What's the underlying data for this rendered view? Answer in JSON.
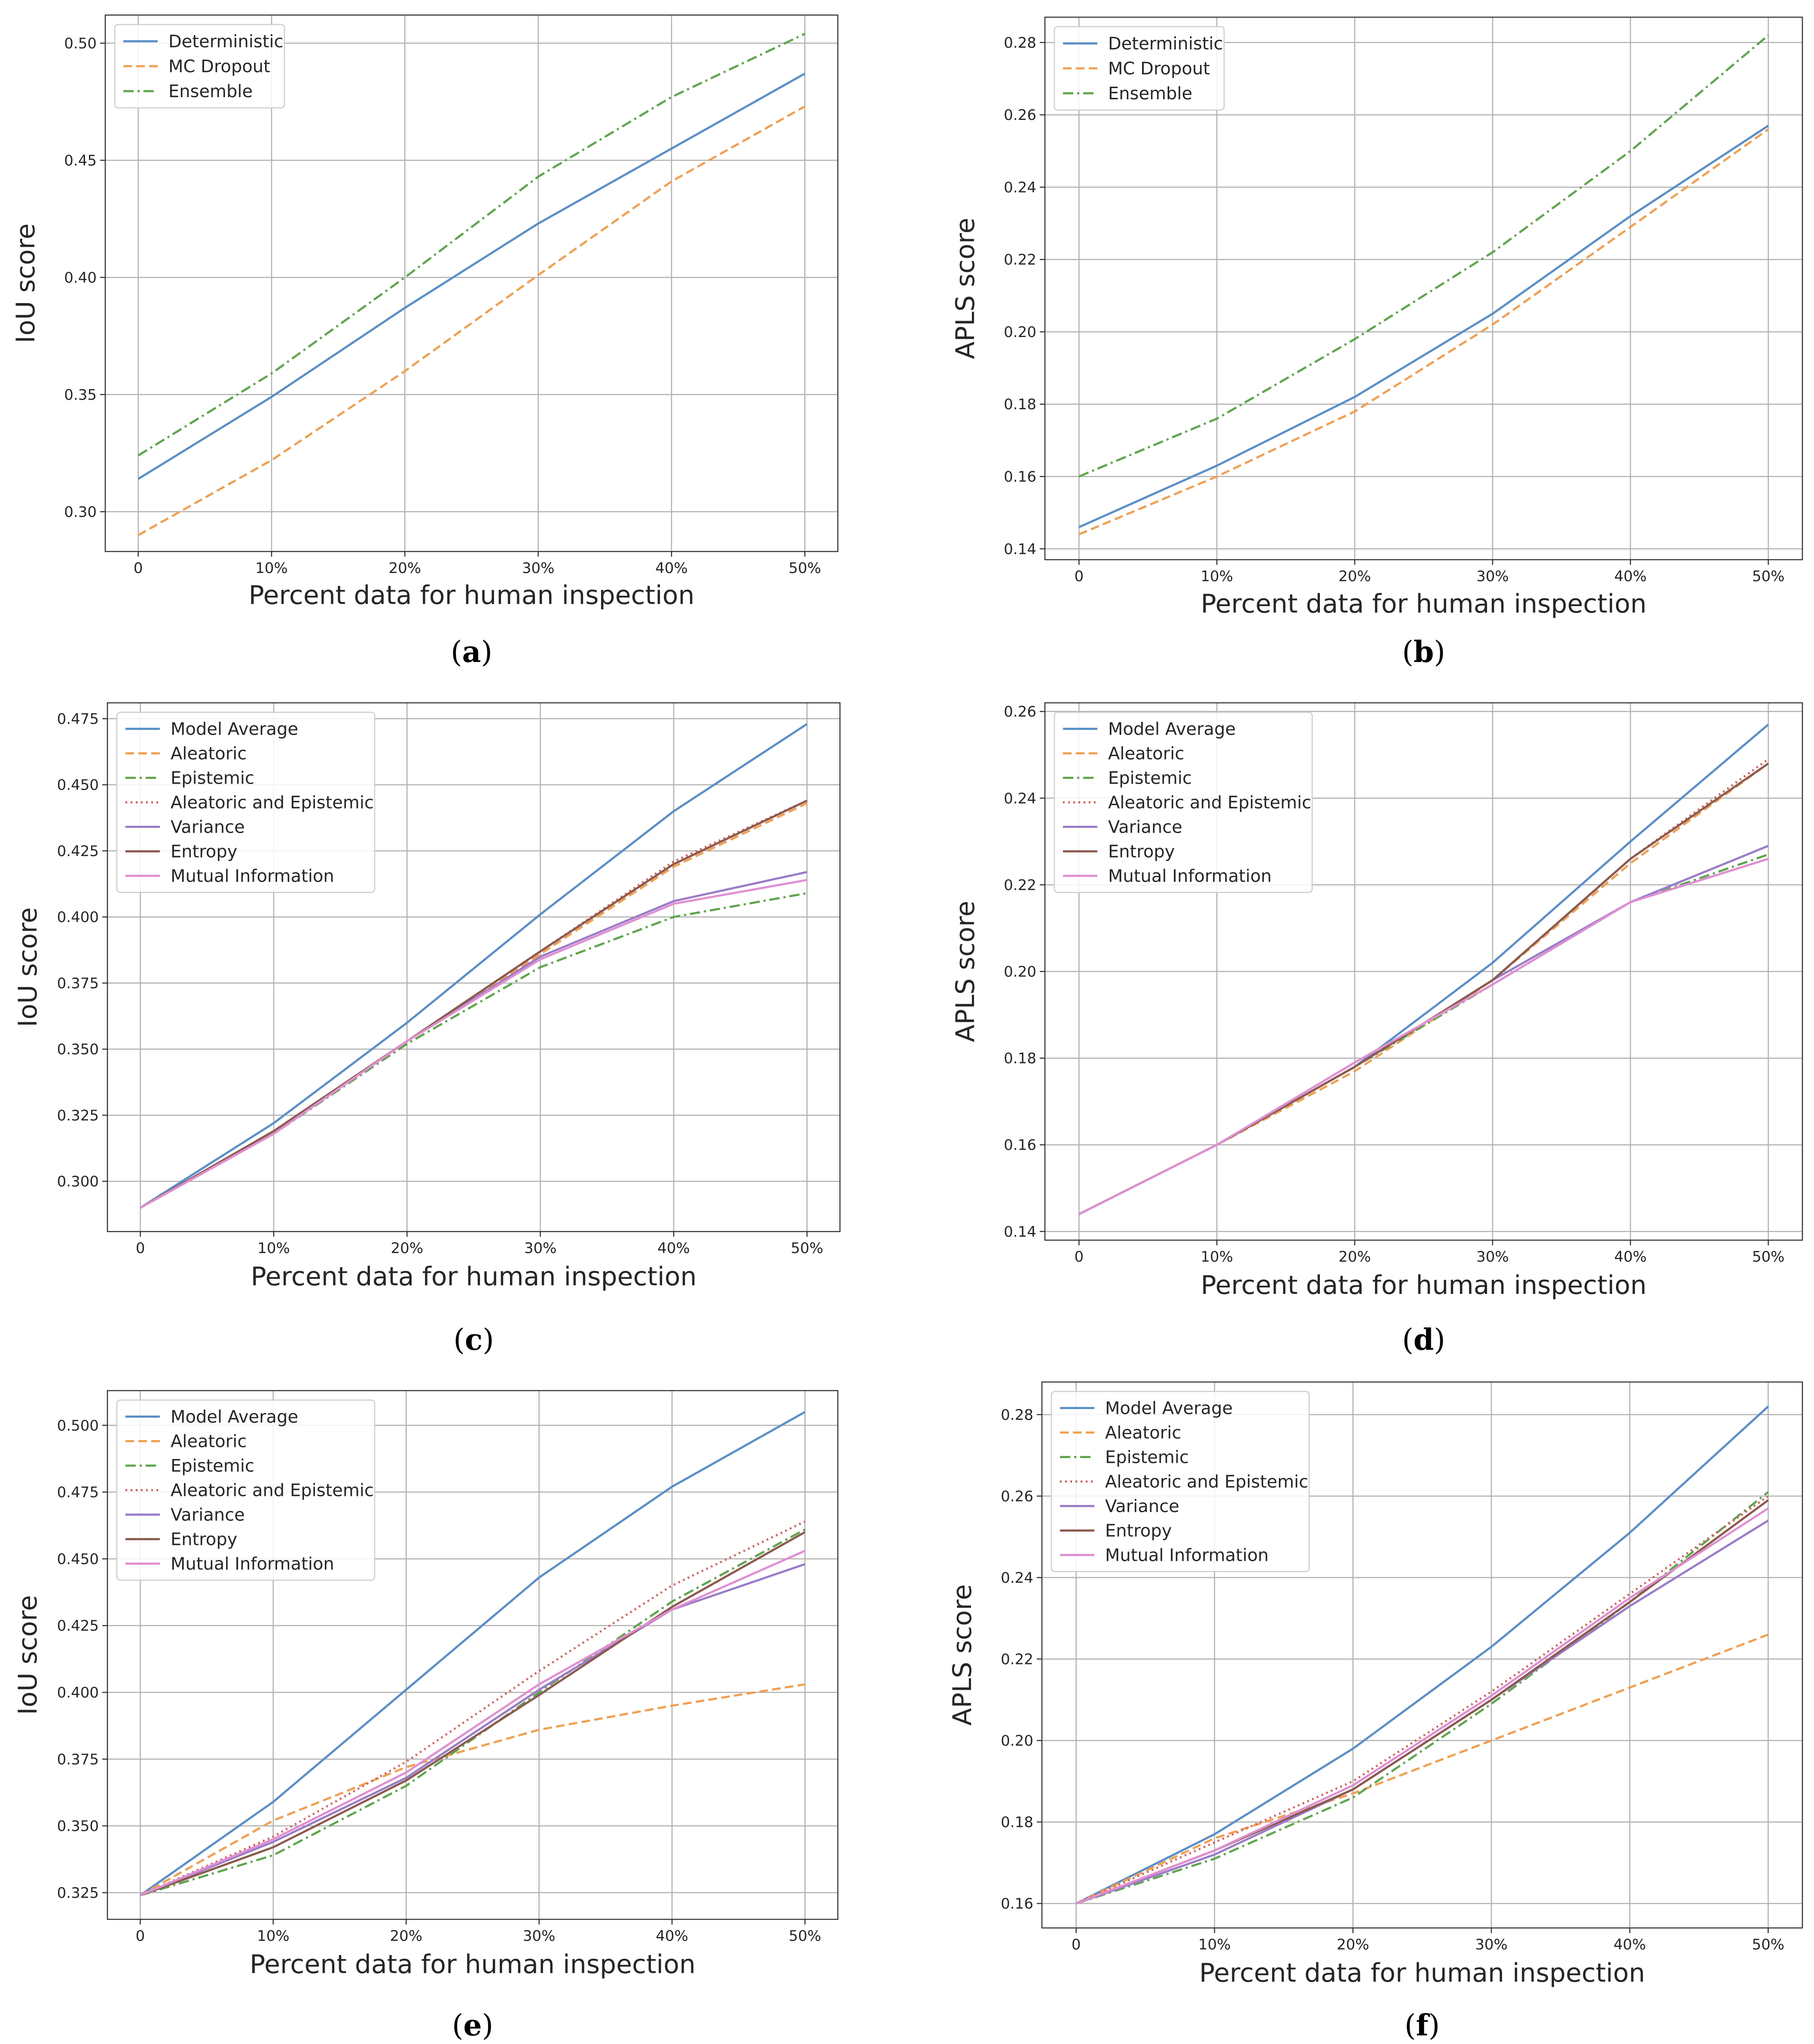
{
  "chart_data": [
    {
      "panel": "a",
      "caption": "a",
      "type": "line",
      "xlabel": "Percent data for human inspection",
      "ylabel": "IoU score",
      "x": [
        "0",
        "10%",
        "20%",
        "30%",
        "40%",
        "50%"
      ],
      "ylim": [
        0.283,
        0.512
      ],
      "yticks": [
        "0.30",
        "0.35",
        "0.40",
        "0.45",
        "0.50"
      ],
      "ytick_values": [
        0.3,
        0.35,
        0.4,
        0.45,
        0.5
      ],
      "series": [
        {
          "name": "Deterministic",
          "color": "#5b8fc7",
          "style": "solid",
          "values": [
            0.314,
            0.349,
            0.387,
            0.423,
            0.455,
            0.487
          ]
        },
        {
          "name": "MC Dropout",
          "color": "#f0a050",
          "style": "dashed",
          "values": [
            0.29,
            0.322,
            0.36,
            0.401,
            0.441,
            0.473
          ]
        },
        {
          "name": "Ensemble",
          "color": "#5fa64e",
          "style": "dashdot",
          "values": [
            0.324,
            0.359,
            0.4,
            0.443,
            0.477,
            0.504
          ]
        }
      ]
    },
    {
      "panel": "b",
      "caption": "b",
      "type": "line",
      "xlabel": "Percent data for human inspection",
      "ylabel": "APLS score",
      "x": [
        "0",
        "10%",
        "20%",
        "30%",
        "40%",
        "50%"
      ],
      "ylim": [
        0.137,
        0.287
      ],
      "yticks": [
        "0.14",
        "0.16",
        "0.18",
        "0.20",
        "0.22",
        "0.24",
        "0.26",
        "0.28"
      ],
      "ytick_values": [
        0.14,
        0.16,
        0.18,
        0.2,
        0.22,
        0.24,
        0.26,
        0.28
      ],
      "series": [
        {
          "name": "Deterministic",
          "color": "#5b8fc7",
          "style": "solid",
          "values": [
            0.146,
            0.163,
            0.182,
            0.205,
            0.232,
            0.257
          ]
        },
        {
          "name": "MC Dropout",
          "color": "#f0a050",
          "style": "dashed",
          "values": [
            0.144,
            0.16,
            0.178,
            0.202,
            0.229,
            0.256
          ]
        },
        {
          "name": "Ensemble",
          "color": "#5fa64e",
          "style": "dashdot",
          "values": [
            0.16,
            0.176,
            0.198,
            0.222,
            0.25,
            0.282
          ]
        }
      ]
    },
    {
      "panel": "c",
      "caption": "c",
      "type": "line",
      "xlabel": "Percent data for human inspection",
      "ylabel": "IoU score",
      "x": [
        "0",
        "10%",
        "20%",
        "30%",
        "40%",
        "50%"
      ],
      "ylim": [
        0.281,
        0.481
      ],
      "yticks": [
        "0.300",
        "0.325",
        "0.350",
        "0.375",
        "0.400",
        "0.425",
        "0.450",
        "0.475"
      ],
      "ytick_values": [
        0.3,
        0.325,
        0.35,
        0.375,
        0.4,
        0.425,
        0.45,
        0.475
      ],
      "series": [
        {
          "name": "Model Average",
          "color": "#5b8fc7",
          "style": "solid",
          "values": [
            0.29,
            0.322,
            0.36,
            0.401,
            0.44,
            0.473
          ]
        },
        {
          "name": "Aleatoric",
          "color": "#f0a050",
          "style": "dashed",
          "values": [
            0.29,
            0.319,
            0.353,
            0.386,
            0.419,
            0.443
          ]
        },
        {
          "name": "Epistemic",
          "color": "#5fa64e",
          "style": "dashdot",
          "values": [
            0.29,
            0.318,
            0.352,
            0.381,
            0.4,
            0.409
          ]
        },
        {
          "name": "Aleatoric and Epistemic",
          "color": "#d9605a",
          "style": "dotted",
          "values": [
            0.29,
            0.319,
            0.353,
            0.387,
            0.421,
            0.444
          ]
        },
        {
          "name": "Variance",
          "color": "#9a7cc9",
          "style": "solid",
          "values": [
            0.29,
            0.318,
            0.353,
            0.385,
            0.406,
            0.417
          ]
        },
        {
          "name": "Entropy",
          "color": "#8c5a4e",
          "style": "solid",
          "values": [
            0.29,
            0.319,
            0.353,
            0.387,
            0.42,
            0.444
          ]
        },
        {
          "name": "Mutual Information",
          "color": "#e08fd2",
          "style": "solid",
          "values": [
            0.29,
            0.318,
            0.353,
            0.384,
            0.405,
            0.414
          ]
        }
      ]
    },
    {
      "panel": "d",
      "caption": "d",
      "type": "line",
      "xlabel": "Percent data for human inspection",
      "ylabel": "APLS score",
      "x": [
        "0",
        "10%",
        "20%",
        "30%",
        "40%",
        "50%"
      ],
      "ylim": [
        0.138,
        0.262
      ],
      "yticks": [
        "0.14",
        "0.16",
        "0.18",
        "0.20",
        "0.22",
        "0.24",
        "0.26"
      ],
      "ytick_values": [
        0.14,
        0.16,
        0.18,
        0.2,
        0.22,
        0.24,
        0.26
      ],
      "series": [
        {
          "name": "Model Average",
          "color": "#5b8fc7",
          "style": "solid",
          "values": [
            0.144,
            0.16,
            0.178,
            0.202,
            0.23,
            0.257
          ]
        },
        {
          "name": "Aleatoric",
          "color": "#f0a050",
          "style": "dashed",
          "values": [
            0.144,
            0.16,
            0.177,
            0.198,
            0.225,
            0.248
          ]
        },
        {
          "name": "Epistemic",
          "color": "#5fa64e",
          "style": "dashdot",
          "values": [
            0.144,
            0.16,
            0.178,
            0.197,
            0.216,
            0.227
          ]
        },
        {
          "name": "Aleatoric and Epistemic",
          "color": "#d9605a",
          "style": "dotted",
          "values": [
            0.144,
            0.16,
            0.178,
            0.198,
            0.226,
            0.249
          ]
        },
        {
          "name": "Variance",
          "color": "#9a7cc9",
          "style": "solid",
          "values": [
            0.144,
            0.16,
            0.178,
            0.198,
            0.216,
            0.229
          ]
        },
        {
          "name": "Entropy",
          "color": "#8c5a4e",
          "style": "solid",
          "values": [
            0.144,
            0.16,
            0.178,
            0.198,
            0.226,
            0.248
          ]
        },
        {
          "name": "Mutual Information",
          "color": "#e08fd2",
          "style": "solid",
          "values": [
            0.144,
            0.16,
            0.179,
            0.197,
            0.216,
            0.226
          ]
        }
      ]
    },
    {
      "panel": "e",
      "caption": "e",
      "type": "line",
      "xlabel": "Percent data for human inspection",
      "ylabel": "IoU score",
      "x": [
        "0",
        "10%",
        "20%",
        "30%",
        "40%",
        "50%"
      ],
      "ylim": [
        0.315,
        0.513
      ],
      "yticks": [
        "0.325",
        "0.350",
        "0.375",
        "0.400",
        "0.425",
        "0.450",
        "0.475",
        "0.500"
      ],
      "ytick_values": [
        0.325,
        0.35,
        0.375,
        0.4,
        0.425,
        0.45,
        0.475,
        0.5
      ],
      "series": [
        {
          "name": "Model Average",
          "color": "#5b8fc7",
          "style": "solid",
          "values": [
            0.324,
            0.359,
            0.401,
            0.443,
            0.477,
            0.505
          ]
        },
        {
          "name": "Aleatoric",
          "color": "#f0a050",
          "style": "dashed",
          "values": [
            0.324,
            0.352,
            0.372,
            0.386,
            0.395,
            0.403
          ]
        },
        {
          "name": "Epistemic",
          "color": "#5fa64e",
          "style": "dashdot",
          "values": [
            0.324,
            0.339,
            0.365,
            0.4,
            0.434,
            0.461
          ]
        },
        {
          "name": "Aleatoric and Epistemic",
          "color": "#d9605a",
          "style": "dotted",
          "values": [
            0.324,
            0.346,
            0.374,
            0.408,
            0.44,
            0.464
          ]
        },
        {
          "name": "Variance",
          "color": "#9a7cc9",
          "style": "solid",
          "values": [
            0.324,
            0.344,
            0.368,
            0.401,
            0.431,
            0.448
          ]
        },
        {
          "name": "Entropy",
          "color": "#8c5a4e",
          "style": "solid",
          "values": [
            0.324,
            0.342,
            0.367,
            0.399,
            0.432,
            0.46
          ]
        },
        {
          "name": "Mutual Information",
          "color": "#e08fd2",
          "style": "solid",
          "values": [
            0.324,
            0.345,
            0.37,
            0.403,
            0.431,
            0.453
          ]
        }
      ]
    },
    {
      "panel": "f",
      "caption": "f",
      "type": "line",
      "xlabel": "Percent data for human inspection",
      "ylabel": "APLS score",
      "x": [
        "0",
        "10%",
        "20%",
        "30%",
        "40%",
        "50%"
      ],
      "ylim": [
        0.154,
        0.288
      ],
      "yticks": [
        "0.16",
        "0.18",
        "0.20",
        "0.22",
        "0.24",
        "0.26",
        "0.28"
      ],
      "ytick_values": [
        0.16,
        0.18,
        0.2,
        0.22,
        0.24,
        0.26,
        0.28
      ],
      "series": [
        {
          "name": "Model Average",
          "color": "#5b8fc7",
          "style": "solid",
          "values": [
            0.16,
            0.177,
            0.198,
            0.223,
            0.251,
            0.282
          ]
        },
        {
          "name": "Aleatoric",
          "color": "#f0a050",
          "style": "dashed",
          "values": [
            0.16,
            0.176,
            0.187,
            0.2,
            0.213,
            0.226
          ]
        },
        {
          "name": "Epistemic",
          "color": "#5fa64e",
          "style": "dashdot",
          "values": [
            0.16,
            0.171,
            0.186,
            0.209,
            0.234,
            0.261
          ]
        },
        {
          "name": "Aleatoric and Epistemic",
          "color": "#d9605a",
          "style": "dotted",
          "values": [
            0.16,
            0.175,
            0.19,
            0.212,
            0.236,
            0.26
          ]
        },
        {
          "name": "Variance",
          "color": "#9a7cc9",
          "style": "solid",
          "values": [
            0.16,
            0.172,
            0.188,
            0.21,
            0.233,
            0.254
          ]
        },
        {
          "name": "Entropy",
          "color": "#8c5a4e",
          "style": "solid",
          "values": [
            0.16,
            0.173,
            0.188,
            0.21,
            0.234,
            0.259
          ]
        },
        {
          "name": "Mutual Information",
          "color": "#e08fd2",
          "style": "solid",
          "values": [
            0.16,
            0.173,
            0.189,
            0.211,
            0.235,
            0.257
          ]
        }
      ]
    }
  ]
}
